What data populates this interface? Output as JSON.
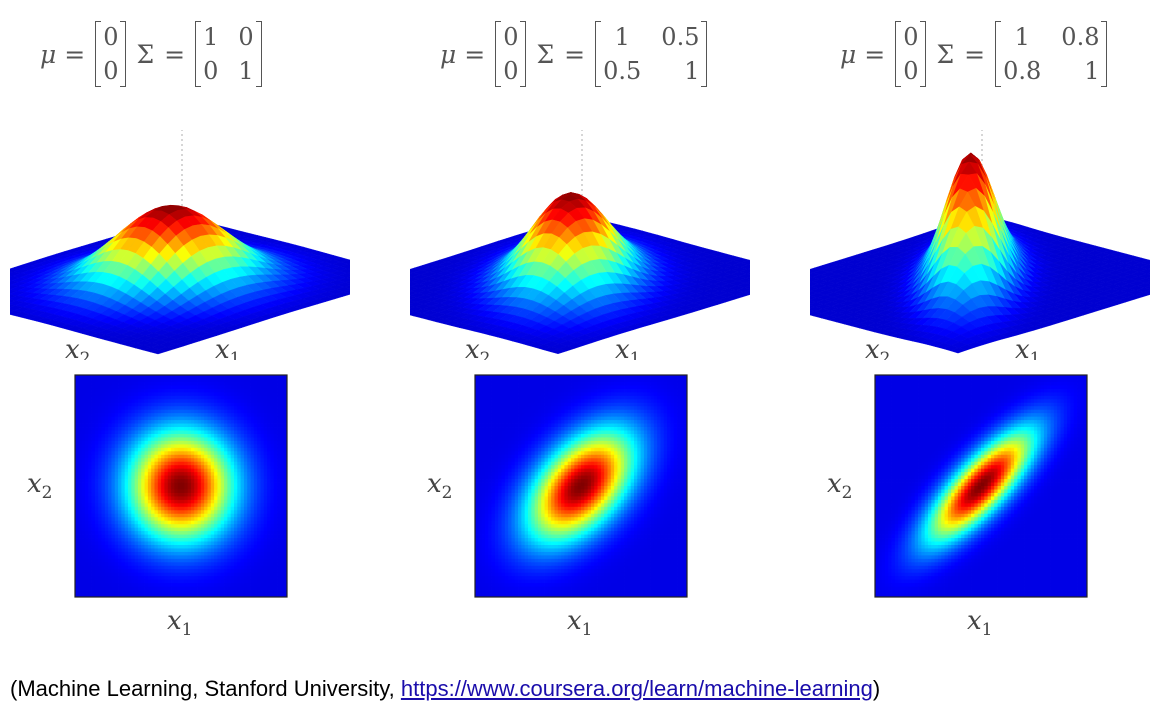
{
  "chart_data": [
    {
      "type": "heatmap",
      "distribution": "bivariate-gaussian",
      "mu": [
        "0",
        "0"
      ],
      "sigma": [
        [
          "1",
          "0"
        ],
        [
          "0",
          "1"
        ]
      ],
      "rho": 0,
      "xlabel": "x",
      "xlabel_sub": "1",
      "ylabel": "x",
      "ylabel_sub": "2",
      "colormap": "jet"
    },
    {
      "type": "heatmap",
      "distribution": "bivariate-gaussian",
      "mu": [
        "0",
        "0"
      ],
      "sigma": [
        [
          "1",
          "0.5"
        ],
        [
          "0.5",
          "1"
        ]
      ],
      "rho": 0.5,
      "xlabel": "x",
      "xlabel_sub": "1",
      "ylabel": "x",
      "ylabel_sub": "2",
      "colormap": "jet"
    },
    {
      "type": "heatmap",
      "distribution": "bivariate-gaussian",
      "mu": [
        "0",
        "0"
      ],
      "sigma": [
        [
          "1",
          "0.8"
        ],
        [
          "0.8",
          "1"
        ]
      ],
      "rho": 0.8,
      "xlabel": "x",
      "xlabel_sub": "1",
      "ylabel": "x",
      "ylabel_sub": "2",
      "colormap": "jet"
    }
  ],
  "formula": {
    "mu_symbol": "μ",
    "sigma_symbol": "Σ",
    "equals": "="
  },
  "footer": {
    "prefix": "(Machine Learning, Stanford University, ",
    "link": "https://www.coursera.org/learn/machine-learning",
    "suffix": ")"
  }
}
